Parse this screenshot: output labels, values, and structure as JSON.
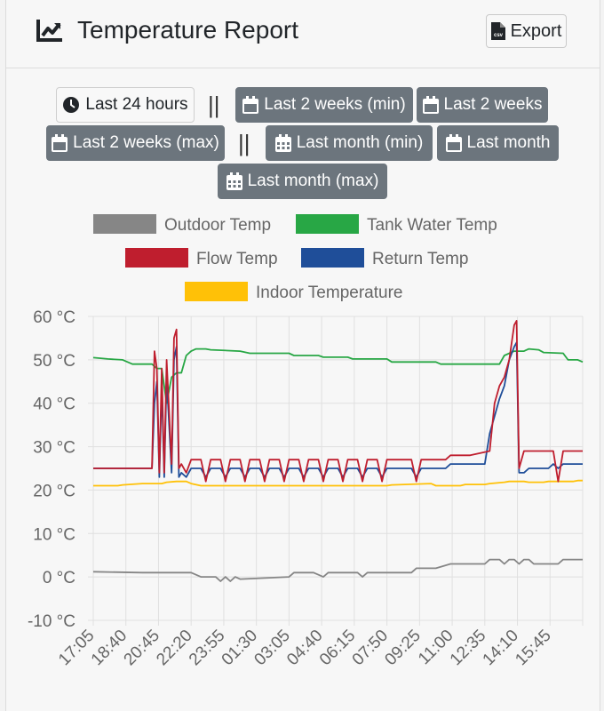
{
  "header": {
    "title": "Temperature Report",
    "export_label": "Export",
    "export_icon": "csv-file-icon",
    "title_icon": "line-chart-icon"
  },
  "ranges": {
    "separator": "||",
    "items": [
      {
        "label": "Last 24 hours",
        "icon": "clock-icon",
        "active": true
      },
      {
        "label": "Last 2 weeks (min)",
        "icon": "calendar-icon",
        "active": false
      },
      {
        "label": "Last 2 weeks",
        "icon": "calendar-icon",
        "active": false
      },
      {
        "label": "Last 2 weeks (max)",
        "icon": "calendar-icon",
        "active": false
      },
      {
        "label": "Last month (min)",
        "icon": "calendar-grid-icon",
        "active": false
      },
      {
        "label": "Last month",
        "icon": "calendar-icon",
        "active": false
      },
      {
        "label": "Last month (max)",
        "icon": "calendar-grid-icon",
        "active": false
      }
    ]
  },
  "chart_data": {
    "type": "line",
    "y_unit": "°C",
    "ylim": [
      -10,
      60
    ],
    "y_ticks": [
      "60 °C",
      "50 °C",
      "40 °C",
      "30 °C",
      "20 °C",
      "10 °C",
      "0 °C",
      "-10 °C"
    ],
    "x_ticks": [
      "17:05",
      "18:40",
      "20:45",
      "22:20",
      "23:55",
      "01:30",
      "03:05",
      "04:40",
      "06:15",
      "07:50",
      "09:25",
      "11:00",
      "12:35",
      "14:10",
      "15:45"
    ],
    "xlim": [
      0,
      100
    ],
    "grid": true,
    "legend_position": "top",
    "series": [
      {
        "name": "Outdoor Temp",
        "color": "#868686",
        "points": [
          [
            0,
            1.2
          ],
          [
            10,
            1
          ],
          [
            20,
            1
          ],
          [
            22,
            0
          ],
          [
            25,
            0
          ],
          [
            26,
            -1
          ],
          [
            27,
            0
          ],
          [
            28,
            -1
          ],
          [
            29,
            0
          ],
          [
            30,
            -0.5
          ],
          [
            40,
            0
          ],
          [
            41,
            1
          ],
          [
            45,
            1
          ],
          [
            47,
            0
          ],
          [
            48,
            1
          ],
          [
            54,
            1
          ],
          [
            55,
            0
          ],
          [
            56,
            1
          ],
          [
            65,
            1
          ],
          [
            66,
            2
          ],
          [
            69,
            2
          ],
          [
            70,
            2
          ],
          [
            73,
            3
          ],
          [
            80,
            3
          ],
          [
            81,
            4
          ],
          [
            83,
            4
          ],
          [
            84,
            3
          ],
          [
            85,
            4
          ],
          [
            86,
            4
          ],
          [
            87,
            3
          ],
          [
            88,
            4
          ],
          [
            89,
            4
          ],
          [
            90,
            3
          ],
          [
            95,
            3
          ],
          [
            96,
            4
          ],
          [
            100,
            4
          ]
        ]
      },
      {
        "name": "Tank Water Temp",
        "color": "#28a745",
        "points": [
          [
            0,
            50.5
          ],
          [
            3,
            50.2
          ],
          [
            6,
            50
          ],
          [
            8,
            49
          ],
          [
            12,
            49
          ],
          [
            13,
            48
          ],
          [
            14,
            48
          ],
          [
            15,
            40
          ],
          [
            16,
            46
          ],
          [
            17,
            47
          ],
          [
            18,
            47
          ],
          [
            19,
            51
          ],
          [
            20,
            52
          ],
          [
            21,
            52.5
          ],
          [
            23,
            52.5
          ],
          [
            24,
            52.3
          ],
          [
            30,
            52
          ],
          [
            32,
            51.5
          ],
          [
            40,
            51.5
          ],
          [
            41,
            51
          ],
          [
            46,
            51
          ],
          [
            47,
            50.6
          ],
          [
            52,
            50.6
          ],
          [
            53,
            50.2
          ],
          [
            60,
            50.2
          ],
          [
            61,
            49.5
          ],
          [
            70,
            49.5
          ],
          [
            71,
            49
          ],
          [
            83,
            49
          ],
          [
            84,
            51
          ],
          [
            86,
            52
          ],
          [
            88,
            52
          ],
          [
            89,
            52.5
          ],
          [
            91,
            52.3
          ],
          [
            92,
            51.7
          ],
          [
            96,
            51.5
          ],
          [
            97,
            50
          ],
          [
            99,
            50
          ],
          [
            100,
            49.5
          ]
        ]
      },
      {
        "name": "Flow Temp",
        "color": "#bf1e2e",
        "points": [
          [
            0,
            25
          ],
          [
            12,
            25
          ],
          [
            12.5,
            52
          ],
          [
            13,
            48
          ],
          [
            13.5,
            24
          ],
          [
            14,
            48
          ],
          [
            14.5,
            24
          ],
          [
            15,
            50
          ],
          [
            16,
            26
          ],
          [
            16.5,
            55
          ],
          [
            17,
            57
          ],
          [
            17.5,
            25
          ],
          [
            18,
            26
          ],
          [
            19,
            24
          ],
          [
            20,
            27
          ],
          [
            22,
            27
          ],
          [
            23,
            22
          ],
          [
            24,
            27
          ],
          [
            26,
            27
          ],
          [
            27,
            22
          ],
          [
            28,
            27
          ],
          [
            30,
            27
          ],
          [
            31,
            22
          ],
          [
            32,
            27
          ],
          [
            34,
            27
          ],
          [
            35,
            22
          ],
          [
            36,
            27
          ],
          [
            38,
            27
          ],
          [
            39,
            22
          ],
          [
            40,
            27
          ],
          [
            42,
            27
          ],
          [
            43,
            22
          ],
          [
            44,
            27
          ],
          [
            46,
            27
          ],
          [
            47,
            22
          ],
          [
            48,
            27
          ],
          [
            50,
            27
          ],
          [
            51,
            22
          ],
          [
            52,
            27
          ],
          [
            54,
            27
          ],
          [
            55,
            22
          ],
          [
            56,
            27
          ],
          [
            58,
            27
          ],
          [
            59,
            22
          ],
          [
            60,
            27
          ],
          [
            62,
            27
          ],
          [
            65,
            27
          ],
          [
            66,
            22
          ],
          [
            67,
            27
          ],
          [
            69,
            27
          ],
          [
            70,
            27
          ],
          [
            72,
            27
          ],
          [
            73,
            28
          ],
          [
            76,
            28
          ],
          [
            77,
            28
          ],
          [
            81,
            29
          ],
          [
            82,
            40
          ],
          [
            83,
            44
          ],
          [
            84,
            46
          ],
          [
            85,
            50
          ],
          [
            86,
            58
          ],
          [
            86.5,
            59
          ],
          [
            87,
            25
          ],
          [
            88,
            29
          ],
          [
            92,
            29
          ],
          [
            93,
            29
          ],
          [
            94,
            29
          ],
          [
            95,
            22
          ],
          [
            96,
            29
          ],
          [
            100,
            29
          ]
        ]
      },
      {
        "name": "Return Temp",
        "color": "#1f4e99",
        "points": [
          [
            0,
            25
          ],
          [
            12,
            25
          ],
          [
            12.5,
            40
          ],
          [
            13,
            45
          ],
          [
            13.5,
            23
          ],
          [
            14,
            44
          ],
          [
            14.5,
            23
          ],
          [
            15,
            46
          ],
          [
            16,
            24
          ],
          [
            16.5,
            50
          ],
          [
            17,
            53
          ],
          [
            17.5,
            23
          ],
          [
            18,
            24
          ],
          [
            19,
            23
          ],
          [
            20,
            25
          ],
          [
            22,
            25
          ],
          [
            23,
            23
          ],
          [
            24,
            25
          ],
          [
            26,
            25
          ],
          [
            27,
            23
          ],
          [
            28,
            25
          ],
          [
            30,
            25
          ],
          [
            31,
            23
          ],
          [
            32,
            25
          ],
          [
            34,
            25
          ],
          [
            35,
            23
          ],
          [
            36,
            25
          ],
          [
            38,
            25
          ],
          [
            39,
            23
          ],
          [
            40,
            25
          ],
          [
            42,
            25
          ],
          [
            43,
            23
          ],
          [
            44,
            25
          ],
          [
            46,
            25
          ],
          [
            47,
            23
          ],
          [
            48,
            25
          ],
          [
            50,
            25
          ],
          [
            51,
            23
          ],
          [
            52,
            25
          ],
          [
            54,
            25
          ],
          [
            55,
            23
          ],
          [
            56,
            25
          ],
          [
            58,
            25
          ],
          [
            59,
            23
          ],
          [
            60,
            25
          ],
          [
            62,
            25
          ],
          [
            65,
            25
          ],
          [
            66,
            23
          ],
          [
            67,
            25
          ],
          [
            69,
            25
          ],
          [
            70,
            25
          ],
          [
            72,
            25
          ],
          [
            73,
            26
          ],
          [
            76,
            26
          ],
          [
            77,
            26
          ],
          [
            80,
            26
          ],
          [
            81,
            33
          ],
          [
            82,
            37
          ],
          [
            83,
            41
          ],
          [
            84,
            44
          ],
          [
            85,
            50
          ],
          [
            86,
            53
          ],
          [
            86.5,
            54
          ],
          [
            87,
            24
          ],
          [
            88,
            24
          ],
          [
            89,
            25
          ],
          [
            93,
            25
          ],
          [
            94,
            26
          ],
          [
            95,
            25
          ],
          [
            96,
            26
          ],
          [
            100,
            26
          ]
        ]
      },
      {
        "name": "Indoor Temperature",
        "color": "#ffc107",
        "points": [
          [
            0,
            21
          ],
          [
            5,
            21
          ],
          [
            6,
            21.2
          ],
          [
            10,
            21.5
          ],
          [
            14,
            21.5
          ],
          [
            15,
            21.8
          ],
          [
            17,
            22
          ],
          [
            19,
            22
          ],
          [
            20,
            21.5
          ],
          [
            22,
            21
          ],
          [
            40,
            21
          ],
          [
            60,
            21
          ],
          [
            61,
            21.2
          ],
          [
            69,
            21.5
          ],
          [
            70,
            21
          ],
          [
            75,
            21
          ],
          [
            76,
            21.3
          ],
          [
            80,
            21.3
          ],
          [
            81,
            21.5
          ],
          [
            84,
            21.8
          ],
          [
            85,
            22
          ],
          [
            88,
            22
          ],
          [
            89,
            21.8
          ],
          [
            92,
            21.8
          ],
          [
            93,
            22
          ],
          [
            98,
            22
          ],
          [
            99,
            22.2
          ],
          [
            100,
            22.2
          ]
        ]
      }
    ]
  }
}
